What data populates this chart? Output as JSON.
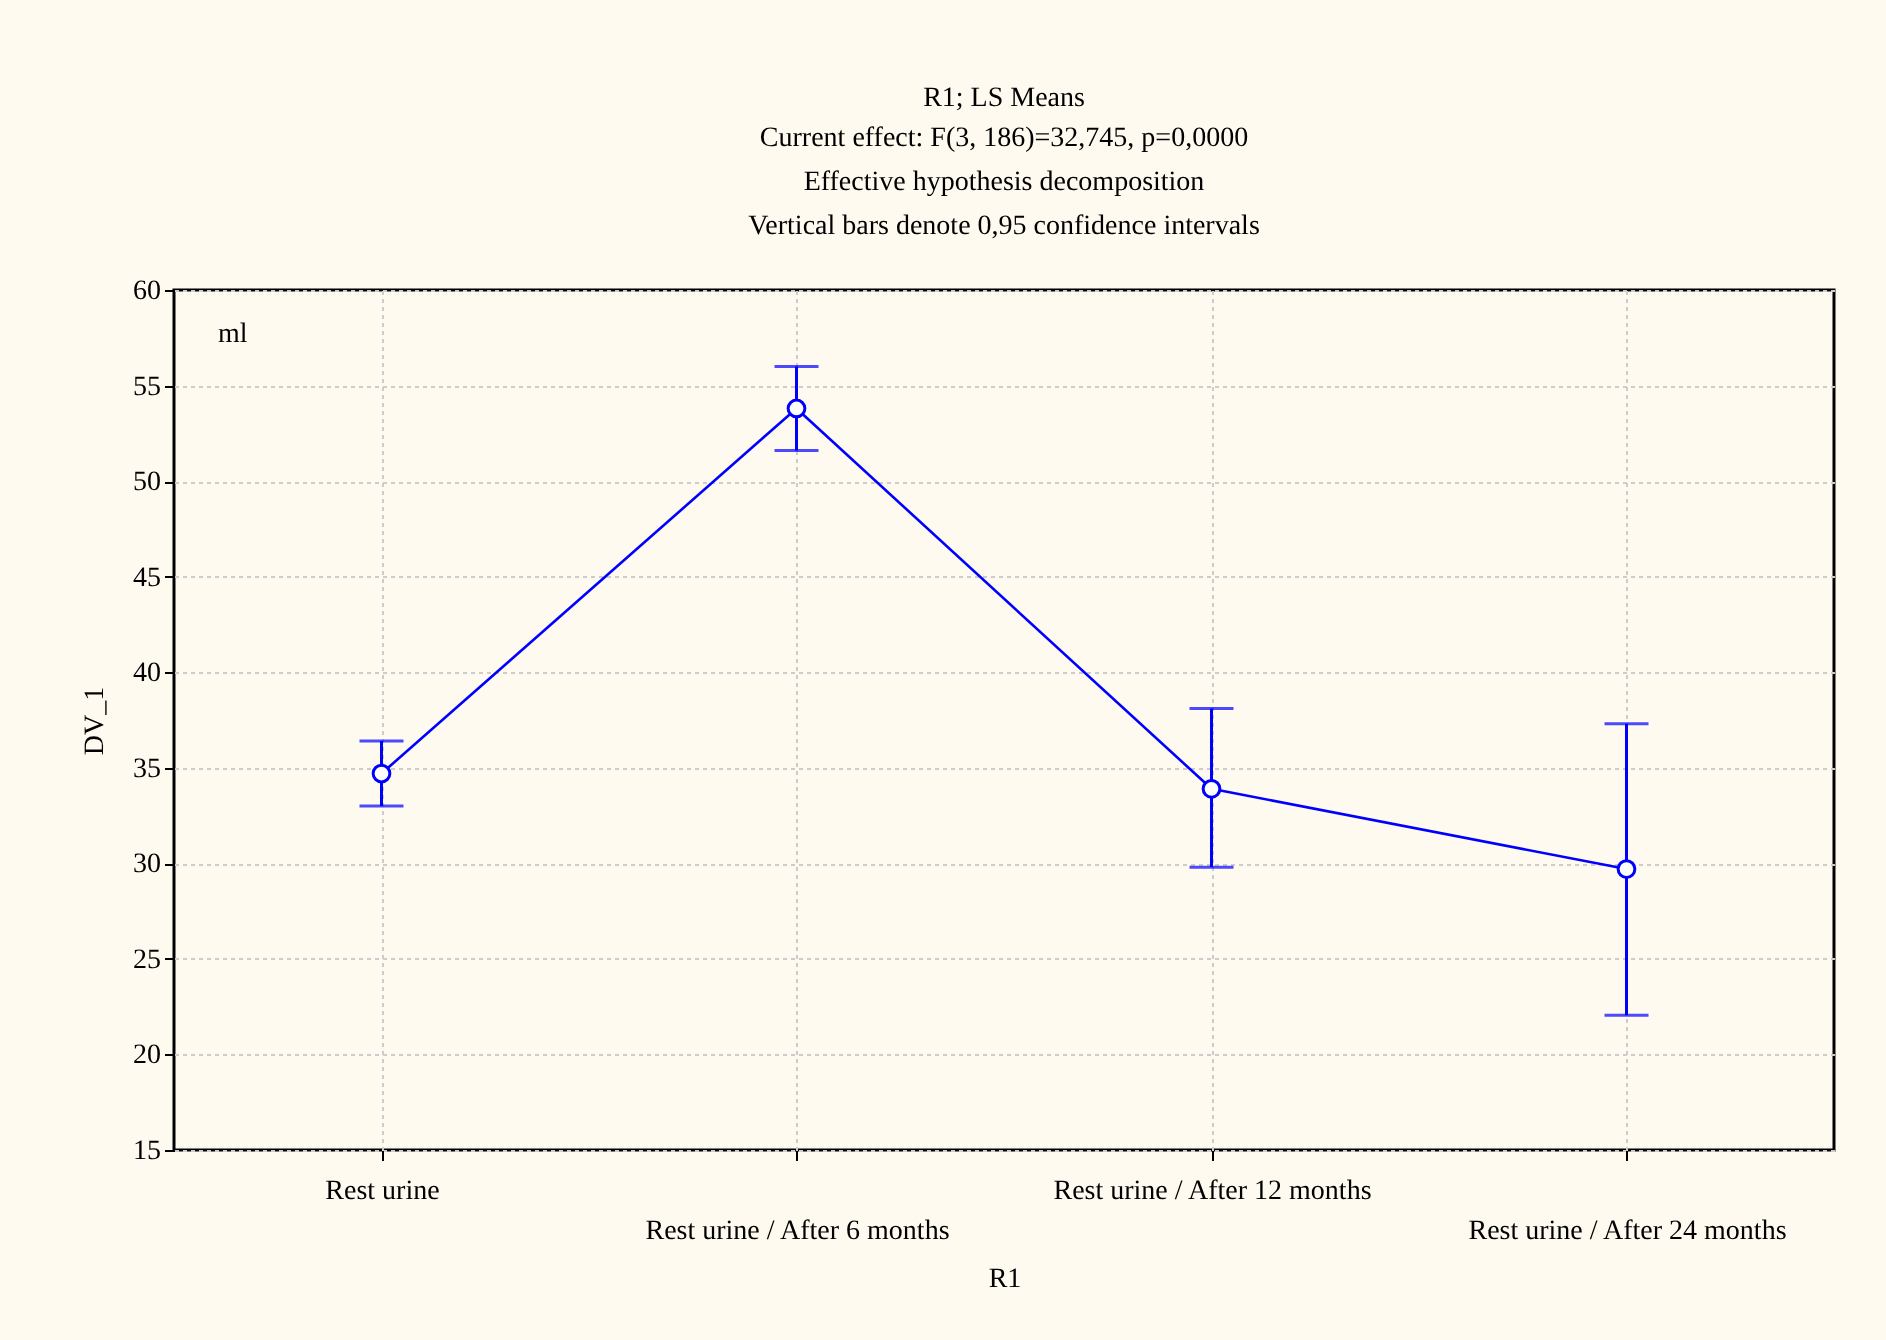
{
  "chart_data": {
    "type": "line",
    "title": "R1; LS Means",
    "subtitle": "Current effect: F(3, 186)=32,745, p=0,0000\nEffective hypothesis decomposition\nVertical bars denote 0,95 confidence intervals",
    "xlabel": "R1",
    "ylabel": "DV_1",
    "annotations": [
      "ml"
    ],
    "categories": [
      "Rest urine",
      "Rest urine / After 6 months",
      "Rest urine / After 12 months",
      "Rest urine / After 24 months"
    ],
    "series": [
      {
        "color": "#0000ff",
        "values": [
          34.7,
          53.8,
          33.9,
          29.7
        ],
        "errors": [
          [
            33.0,
            36.4
          ],
          [
            51.6,
            56.0
          ],
          [
            29.8,
            38.1
          ],
          [
            22.05,
            37.3
          ]
        ]
      }
    ],
    "ylim": [
      15,
      60
    ],
    "yticks": [
      15,
      20,
      25,
      30,
      35,
      40,
      45,
      50,
      55,
      60
    ],
    "grid": true,
    "marker": "circle",
    "line_style": "solid"
  }
}
